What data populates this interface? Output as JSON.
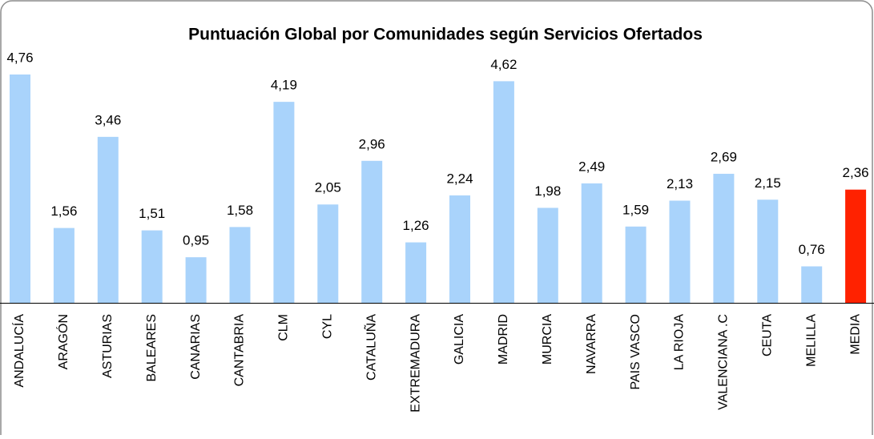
{
  "chart_data": {
    "type": "bar",
    "title": "Puntuación Global por Comunidades según Servicios Ofertados",
    "categories": [
      "ANDALUCÍA",
      "ARAGÓN",
      "ASTURIAS",
      "BALEARES",
      "CANARIAS",
      "CANTABRIA",
      "CLM",
      "CYL",
      "CATALUÑA",
      "EXTREMADURA",
      "GALICIA",
      "MADRID",
      "MURCIA",
      "NAVARRA",
      "PAIS VASCO",
      "LA RIOJA",
      "VALENCIANA .C",
      "CEUTA",
      "MELILLA",
      "MEDIA"
    ],
    "values": [
      4.76,
      1.56,
      3.46,
      1.51,
      0.95,
      1.58,
      4.19,
      2.05,
      2.96,
      1.26,
      2.24,
      4.62,
      1.98,
      2.49,
      1.59,
      2.13,
      2.69,
      2.15,
      0.76,
      2.36
    ],
    "value_labels": [
      "4,76",
      "1,56",
      "3,46",
      "1,51",
      "0,95",
      "1,58",
      "4,19",
      "2,05",
      "2,96",
      "1,26",
      "2,24",
      "4,62",
      "1,98",
      "2,49",
      "1,59",
      "2,13",
      "2,69",
      "2,15",
      "0,76",
      "2,36"
    ],
    "colors": [
      "#a9d3fb",
      "#a9d3fb",
      "#a9d3fb",
      "#a9d3fb",
      "#a9d3fb",
      "#a9d3fb",
      "#a9d3fb",
      "#a9d3fb",
      "#a9d3fb",
      "#a9d3fb",
      "#a9d3fb",
      "#a9d3fb",
      "#a9d3fb",
      "#a9d3fb",
      "#a9d3fb",
      "#a9d3fb",
      "#a9d3fb",
      "#a9d3fb",
      "#a9d3fb",
      "#ff2200"
    ]
  }
}
